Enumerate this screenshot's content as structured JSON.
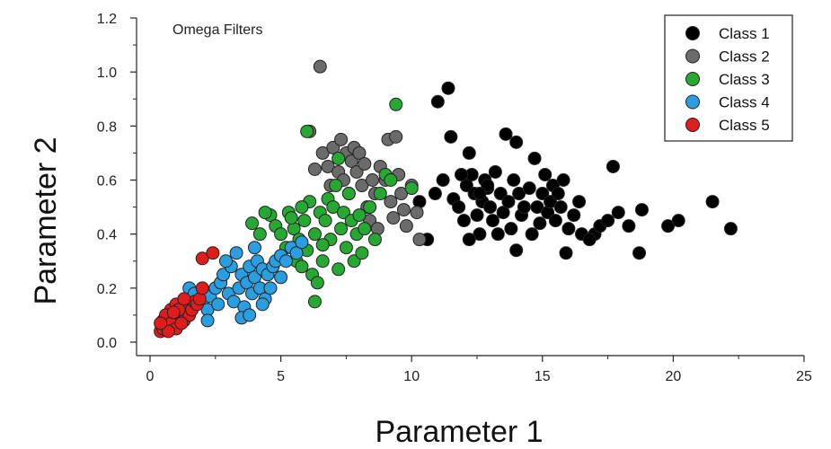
{
  "chart_data": {
    "type": "scatter",
    "title": "",
    "annotation": "Omega Filters",
    "xlabel": "Parameter 1",
    "ylabel": "Parameter 2",
    "xlim": [
      0,
      25
    ],
    "ylim": [
      0,
      1.2
    ],
    "xticks": [
      "0",
      "5",
      "10",
      "15",
      "20",
      "25"
    ],
    "yticks": [
      "0.0",
      "0.2",
      "0.4",
      "0.6",
      "0.8",
      "1.0",
      "1.2"
    ],
    "grid": false,
    "legend_position": "top-right",
    "series": [
      {
        "name": "Class 1",
        "color": "#000000",
        "points": [
          [
            10.3,
            0.52
          ],
          [
            10.6,
            0.38
          ],
          [
            10.9,
            0.55
          ],
          [
            11.0,
            0.89
          ],
          [
            11.2,
            0.6
          ],
          [
            11.4,
            0.94
          ],
          [
            11.5,
            0.76
          ],
          [
            11.6,
            0.53
          ],
          [
            11.8,
            0.5
          ],
          [
            12.0,
            0.45
          ],
          [
            12.1,
            0.58
          ],
          [
            12.2,
            0.7
          ],
          [
            12.3,
            0.62
          ],
          [
            12.4,
            0.55
          ],
          [
            12.5,
            0.47
          ],
          [
            12.6,
            0.4
          ],
          [
            12.7,
            0.52
          ],
          [
            12.8,
            0.6
          ],
          [
            12.9,
            0.57
          ],
          [
            13.0,
            0.5
          ],
          [
            13.1,
            0.45
          ],
          [
            13.2,
            0.63
          ],
          [
            13.4,
            0.55
          ],
          [
            13.5,
            0.48
          ],
          [
            13.6,
            0.77
          ],
          [
            13.7,
            0.52
          ],
          [
            13.8,
            0.42
          ],
          [
            13.9,
            0.6
          ],
          [
            14.0,
            0.74
          ],
          [
            14.1,
            0.55
          ],
          [
            14.2,
            0.47
          ],
          [
            14.3,
            0.5
          ],
          [
            14.5,
            0.57
          ],
          [
            14.7,
            0.68
          ],
          [
            14.8,
            0.5
          ],
          [
            14.9,
            0.44
          ],
          [
            15.0,
            0.55
          ],
          [
            15.1,
            0.62
          ],
          [
            15.2,
            0.48
          ],
          [
            15.3,
            0.52
          ],
          [
            15.4,
            0.58
          ],
          [
            15.5,
            0.45
          ],
          [
            15.6,
            0.55
          ],
          [
            15.7,
            0.5
          ],
          [
            15.8,
            0.6
          ],
          [
            15.9,
            0.33
          ],
          [
            16.0,
            0.42
          ],
          [
            16.2,
            0.47
          ],
          [
            16.4,
            0.52
          ],
          [
            16.5,
            0.4
          ],
          [
            12.2,
            0.38
          ],
          [
            14.0,
            0.34
          ],
          [
            17.0,
            0.4
          ],
          [
            17.2,
            0.43
          ],
          [
            17.5,
            0.45
          ],
          [
            17.7,
            0.65
          ],
          [
            17.9,
            0.48
          ],
          [
            18.3,
            0.43
          ],
          [
            18.7,
            0.33
          ],
          [
            18.8,
            0.49
          ],
          [
            19.8,
            0.43
          ],
          [
            20.2,
            0.45
          ],
          [
            21.5,
            0.52
          ],
          [
            22.2,
            0.42
          ],
          [
            16.8,
            0.38
          ],
          [
            14.6,
            0.4
          ],
          [
            13.3,
            0.4
          ],
          [
            12.9,
            0.58
          ],
          [
            11.9,
            0.62
          ],
          [
            12.6,
            0.55
          ]
        ]
      },
      {
        "name": "Class 2",
        "color": "#6b6b6b",
        "points": [
          [
            6.5,
            1.02
          ],
          [
            6.1,
            0.78
          ],
          [
            6.3,
            0.64
          ],
          [
            6.6,
            0.7
          ],
          [
            6.8,
            0.65
          ],
          [
            6.9,
            0.58
          ],
          [
            7.0,
            0.72
          ],
          [
            7.2,
            0.63
          ],
          [
            7.4,
            0.6
          ],
          [
            7.5,
            0.7
          ],
          [
            7.6,
            0.55
          ],
          [
            7.7,
            0.67
          ],
          [
            7.8,
            0.72
          ],
          [
            7.9,
            0.63
          ],
          [
            8.0,
            0.7
          ],
          [
            8.1,
            0.58
          ],
          [
            8.2,
            0.66
          ],
          [
            8.3,
            0.5
          ],
          [
            8.4,
            0.45
          ],
          [
            8.5,
            0.6
          ],
          [
            8.6,
            0.55
          ],
          [
            8.8,
            0.65
          ],
          [
            9.0,
            0.6
          ],
          [
            9.1,
            0.75
          ],
          [
            9.2,
            0.52
          ],
          [
            9.3,
            0.46
          ],
          [
            9.4,
            0.76
          ],
          [
            9.5,
            0.62
          ],
          [
            9.6,
            0.55
          ],
          [
            9.8,
            0.43
          ],
          [
            10.0,
            0.58
          ],
          [
            10.2,
            0.48
          ],
          [
            10.3,
            0.38
          ],
          [
            8.7,
            0.42
          ],
          [
            9.7,
            0.49
          ],
          [
            7.3,
            0.75
          ]
        ]
      },
      {
        "name": "Class 3",
        "color": "#27a832",
        "points": [
          [
            9.4,
            0.88
          ],
          [
            6.0,
            0.78
          ],
          [
            4.6,
            0.47
          ],
          [
            4.8,
            0.43
          ],
          [
            5.0,
            0.4
          ],
          [
            5.2,
            0.35
          ],
          [
            5.3,
            0.48
          ],
          [
            5.5,
            0.42
          ],
          [
            5.6,
            0.3
          ],
          [
            5.7,
            0.38
          ],
          [
            5.8,
            0.28
          ],
          [
            5.9,
            0.45
          ],
          [
            6.0,
            0.34
          ],
          [
            6.1,
            0.52
          ],
          [
            6.2,
            0.25
          ],
          [
            6.3,
            0.4
          ],
          [
            6.4,
            0.22
          ],
          [
            6.5,
            0.48
          ],
          [
            6.6,
            0.3
          ],
          [
            6.7,
            0.45
          ],
          [
            6.8,
            0.53
          ],
          [
            6.9,
            0.38
          ],
          [
            7.0,
            0.5
          ],
          [
            7.1,
            0.58
          ],
          [
            7.2,
            0.27
          ],
          [
            7.3,
            0.42
          ],
          [
            7.4,
            0.48
          ],
          [
            7.5,
            0.35
          ],
          [
            7.6,
            0.55
          ],
          [
            7.7,
            0.45
          ],
          [
            7.8,
            0.3
          ],
          [
            7.9,
            0.4
          ],
          [
            8.0,
            0.47
          ],
          [
            8.2,
            0.42
          ],
          [
            8.4,
            0.5
          ],
          [
            8.6,
            0.38
          ],
          [
            8.8,
            0.55
          ],
          [
            9.0,
            0.62
          ],
          [
            9.2,
            0.6
          ],
          [
            10.0,
            0.57
          ],
          [
            6.3,
            0.15
          ],
          [
            4.2,
            0.4
          ],
          [
            4.4,
            0.48
          ],
          [
            5.8,
            0.5
          ],
          [
            6.6,
            0.36
          ],
          [
            7.2,
            0.68
          ],
          [
            5.4,
            0.46
          ],
          [
            3.9,
            0.44
          ],
          [
            8.1,
            0.33
          ]
        ]
      },
      {
        "name": "Class 4",
        "color": "#2a9ee0",
        "points": [
          [
            1.5,
            0.2
          ],
          [
            1.7,
            0.18
          ],
          [
            2.0,
            0.15
          ],
          [
            2.2,
            0.12
          ],
          [
            2.3,
            0.17
          ],
          [
            2.5,
            0.2
          ],
          [
            2.6,
            0.14
          ],
          [
            2.7,
            0.22
          ],
          [
            2.8,
            0.25
          ],
          [
            3.0,
            0.18
          ],
          [
            3.1,
            0.28
          ],
          [
            3.2,
            0.15
          ],
          [
            3.3,
            0.33
          ],
          [
            3.4,
            0.2
          ],
          [
            3.5,
            0.25
          ],
          [
            3.6,
            0.13
          ],
          [
            3.7,
            0.22
          ],
          [
            3.8,
            0.28
          ],
          [
            3.9,
            0.18
          ],
          [
            4.0,
            0.24
          ],
          [
            4.1,
            0.3
          ],
          [
            4.2,
            0.2
          ],
          [
            4.3,
            0.27
          ],
          [
            4.4,
            0.16
          ],
          [
            4.5,
            0.25
          ],
          [
            4.6,
            0.2
          ],
          [
            4.7,
            0.28
          ],
          [
            4.8,
            0.3
          ],
          [
            5.0,
            0.32
          ],
          [
            5.2,
            0.3
          ],
          [
            5.4,
            0.35
          ],
          [
            5.6,
            0.33
          ],
          [
            5.8,
            0.37
          ],
          [
            2.2,
            0.08
          ],
          [
            3.5,
            0.09
          ],
          [
            2.9,
            0.3
          ],
          [
            3.8,
            0.1
          ],
          [
            4.3,
            0.14
          ],
          [
            5.0,
            0.24
          ],
          [
            4.0,
            0.35
          ]
        ]
      },
      {
        "name": "Class 5",
        "color": "#e01d1d",
        "points": [
          [
            0.4,
            0.04
          ],
          [
            0.5,
            0.08
          ],
          [
            0.6,
            0.06
          ],
          [
            0.7,
            0.1
          ],
          [
            0.8,
            0.12
          ],
          [
            0.9,
            0.07
          ],
          [
            1.0,
            0.14
          ],
          [
            1.1,
            0.09
          ],
          [
            1.2,
            0.11
          ],
          [
            1.3,
            0.08
          ],
          [
            1.4,
            0.13
          ],
          [
            1.5,
            0.1
          ],
          [
            1.6,
            0.12
          ],
          [
            1.7,
            0.15
          ],
          [
            1.8,
            0.14
          ],
          [
            1.9,
            0.16
          ],
          [
            2.0,
            0.2
          ],
          [
            0.5,
            0.05
          ],
          [
            0.6,
            0.1
          ],
          [
            0.8,
            0.07
          ],
          [
            1.0,
            0.05
          ],
          [
            1.1,
            0.12
          ],
          [
            1.3,
            0.16
          ],
          [
            0.7,
            0.04
          ],
          [
            0.9,
            0.11
          ],
          [
            2.0,
            0.31
          ],
          [
            2.4,
            0.33
          ],
          [
            0.4,
            0.07
          ],
          [
            1.2,
            0.07
          ]
        ]
      }
    ]
  }
}
